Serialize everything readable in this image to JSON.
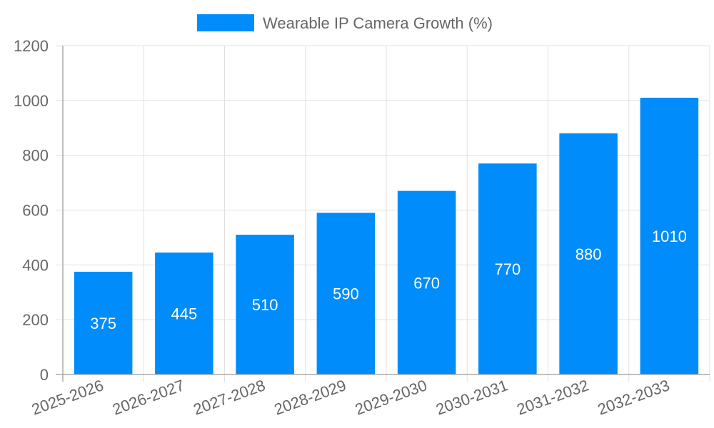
{
  "chart_data": {
    "type": "bar",
    "title": "",
    "legend": [
      {
        "label": "Wearable IP Camera Growth (%)",
        "color": "#008cfa"
      }
    ],
    "legend_position": "top",
    "categories": [
      "2025-2026",
      "2026-2027",
      "2027-2028",
      "2028-2029",
      "2029-2030",
      "2030-2031",
      "2031-2032",
      "2032-2033"
    ],
    "series": [
      {
        "name": "Wearable IP Camera Growth (%)",
        "values": [
          375,
          445,
          510,
          590,
          670,
          770,
          880,
          1010
        ],
        "color": "#008cfa"
      }
    ],
    "xlabel": "",
    "ylabel": "",
    "ylim": [
      0,
      1200
    ],
    "yticks": [
      0,
      200,
      400,
      600,
      800,
      1000,
      1200
    ],
    "grid": true,
    "data_labels": true
  }
}
